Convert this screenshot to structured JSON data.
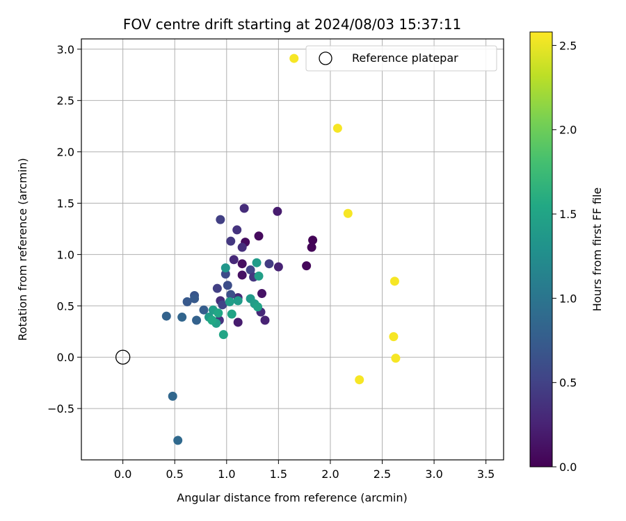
{
  "chart_data": {
    "type": "scatter",
    "title": "FOV centre drift starting at 2024/08/03 15:37:11",
    "xlabel": "Angular distance from reference (arcmin)",
    "ylabel": "Rotation from reference (arcmin)",
    "xlim": [
      -0.4,
      3.67
    ],
    "ylim": [
      -1.0,
      3.1
    ],
    "xticks": [
      0.0,
      0.5,
      1.0,
      1.5,
      2.0,
      2.5,
      3.0,
      3.5
    ],
    "xtick_labels": [
      "0.0",
      "0.5",
      "1.0",
      "1.5",
      "2.0",
      "2.5",
      "3.0",
      "3.5"
    ],
    "yticks": [
      -0.5,
      0.0,
      0.5,
      1.0,
      1.5,
      2.0,
      2.5,
      3.0
    ],
    "ytick_labels": [
      "−0.5",
      "0.0",
      "0.5",
      "1.0",
      "1.5",
      "2.0",
      "2.5",
      "3.0"
    ],
    "grid": true,
    "colorbar": {
      "label": "Hours from first FF file",
      "range": [
        0.0,
        2.58
      ],
      "ticks": [
        0.0,
        0.5,
        1.0,
        1.5,
        2.0,
        2.5
      ],
      "tick_labels": [
        "0.0",
        "0.5",
        "1.0",
        "1.5",
        "2.0",
        "2.5"
      ],
      "colormap": "viridis"
    },
    "legend": {
      "placement": "top-right",
      "entries": [
        {
          "label": "Reference platepar",
          "marker": "open-circle"
        }
      ]
    },
    "reference": {
      "x": 0.0,
      "y": 0.0
    },
    "points": [
      {
        "x": 1.83,
        "y": 1.14,
        "c": 0.02
      },
      {
        "x": 1.82,
        "y": 1.07,
        "c": 0.03
      },
      {
        "x": 1.77,
        "y": 0.89,
        "c": 0.05
      },
      {
        "x": 1.49,
        "y": 1.42,
        "c": 0.2
      },
      {
        "x": 1.5,
        "y": 0.88,
        "c": 0.25
      },
      {
        "x": 1.31,
        "y": 1.18,
        "c": 0.07
      },
      {
        "x": 1.18,
        "y": 1.12,
        "c": 0.08
      },
      {
        "x": 1.15,
        "y": 0.91,
        "c": 0.1
      },
      {
        "x": 1.15,
        "y": 0.8,
        "c": 0.12
      },
      {
        "x": 1.34,
        "y": 0.62,
        "c": 0.13
      },
      {
        "x": 1.11,
        "y": 0.34,
        "c": 0.2
      },
      {
        "x": 1.37,
        "y": 0.36,
        "c": 0.25
      },
      {
        "x": 1.33,
        "y": 0.44,
        "c": 0.3
      },
      {
        "x": 1.17,
        "y": 1.45,
        "c": 0.33
      },
      {
        "x": 1.15,
        "y": 1.07,
        "c": 0.35
      },
      {
        "x": 1.1,
        "y": 1.24,
        "c": 0.38
      },
      {
        "x": 1.07,
        "y": 0.95,
        "c": 0.3
      },
      {
        "x": 1.04,
        "y": 1.13,
        "c": 0.42
      },
      {
        "x": 0.94,
        "y": 1.34,
        "c": 0.48
      },
      {
        "x": 1.41,
        "y": 0.91,
        "c": 0.45
      },
      {
        "x": 1.23,
        "y": 0.85,
        "c": 0.52
      },
      {
        "x": 1.26,
        "y": 0.78,
        "c": 0.4
      },
      {
        "x": 0.99,
        "y": 0.81,
        "c": 0.58
      },
      {
        "x": 1.11,
        "y": 0.58,
        "c": 0.3
      },
      {
        "x": 0.94,
        "y": 0.55,
        "c": 0.32
      },
      {
        "x": 0.93,
        "y": 0.36,
        "c": 0.38
      },
      {
        "x": 0.91,
        "y": 0.67,
        "c": 0.48
      },
      {
        "x": 1.01,
        "y": 0.7,
        "c": 0.6
      },
      {
        "x": 1.04,
        "y": 0.61,
        "c": 0.62
      },
      {
        "x": 0.96,
        "y": 0.51,
        "c": 0.52
      },
      {
        "x": 0.69,
        "y": 0.6,
        "c": 0.68
      },
      {
        "x": 0.62,
        "y": 0.54,
        "c": 0.72
      },
      {
        "x": 0.69,
        "y": 0.57,
        "c": 0.73
      },
      {
        "x": 0.78,
        "y": 0.46,
        "c": 0.76
      },
      {
        "x": 0.71,
        "y": 0.36,
        "c": 0.8
      },
      {
        "x": 0.42,
        "y": 0.4,
        "c": 0.82
      },
      {
        "x": 0.57,
        "y": 0.39,
        "c": 0.84
      },
      {
        "x": 0.48,
        "y": -0.38,
        "c": 0.86
      },
      {
        "x": 0.53,
        "y": -0.81,
        "c": 0.88
      },
      {
        "x": 0.99,
        "y": 0.87,
        "c": 1.35
      },
      {
        "x": 1.29,
        "y": 0.92,
        "c": 1.4
      },
      {
        "x": 1.31,
        "y": 0.79,
        "c": 1.45
      },
      {
        "x": 1.23,
        "y": 0.57,
        "c": 1.38
      },
      {
        "x": 1.27,
        "y": 0.52,
        "c": 1.42
      },
      {
        "x": 1.3,
        "y": 0.49,
        "c": 1.48
      },
      {
        "x": 1.11,
        "y": 0.55,
        "c": 1.4
      },
      {
        "x": 1.03,
        "y": 0.54,
        "c": 1.43
      },
      {
        "x": 1.05,
        "y": 0.42,
        "c": 1.5
      },
      {
        "x": 0.87,
        "y": 0.46,
        "c": 1.44
      },
      {
        "x": 0.83,
        "y": 0.39,
        "c": 1.4
      },
      {
        "x": 0.9,
        "y": 0.33,
        "c": 1.46
      },
      {
        "x": 0.92,
        "y": 0.43,
        "c": 1.52
      },
      {
        "x": 0.86,
        "y": 0.36,
        "c": 1.55
      },
      {
        "x": 0.97,
        "y": 0.22,
        "c": 1.5
      },
      {
        "x": 1.65,
        "y": 2.91,
        "c": 2.55
      },
      {
        "x": 2.07,
        "y": 2.23,
        "c": 2.55
      },
      {
        "x": 2.17,
        "y": 1.4,
        "c": 2.55
      },
      {
        "x": 2.62,
        "y": 0.74,
        "c": 2.55
      },
      {
        "x": 2.61,
        "y": 0.2,
        "c": 2.55
      },
      {
        "x": 2.63,
        "y": -0.01,
        "c": 2.55
      },
      {
        "x": 2.28,
        "y": -0.22,
        "c": 2.55
      }
    ]
  }
}
